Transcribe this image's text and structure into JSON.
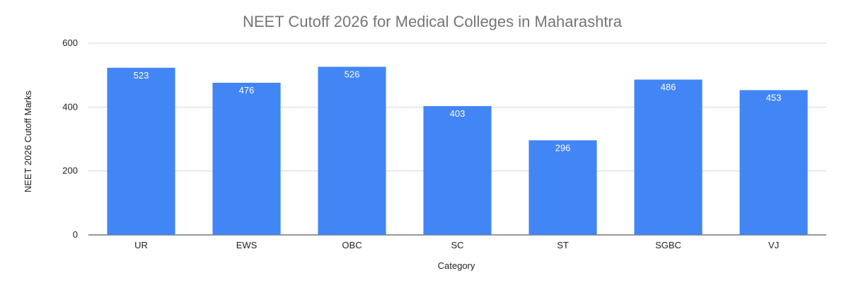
{
  "chart_data": {
    "type": "bar",
    "title": "NEET Cutoff 2026 for Medical Colleges in Maharashtra",
    "xlabel": "Category",
    "ylabel": "NEET 2026 Cutoff Marks",
    "categories": [
      "UR",
      "EWS",
      "OBC",
      "SC",
      "ST",
      "SGBC",
      "VJ"
    ],
    "values": [
      523,
      476,
      526,
      403,
      296,
      486,
      453
    ],
    "data_labels": [
      "523",
      "476",
      "526",
      "403",
      "296",
      "486",
      "453"
    ],
    "y_ticks": [
      "0",
      "200",
      "400",
      "600"
    ],
    "ylim": [
      0,
      600
    ],
    "grid": true,
    "legend": "none",
    "colors": {
      "bar": "#4285F4",
      "title": "#757575",
      "grid": "#d6d6d6",
      "label": "#ffffff"
    }
  }
}
